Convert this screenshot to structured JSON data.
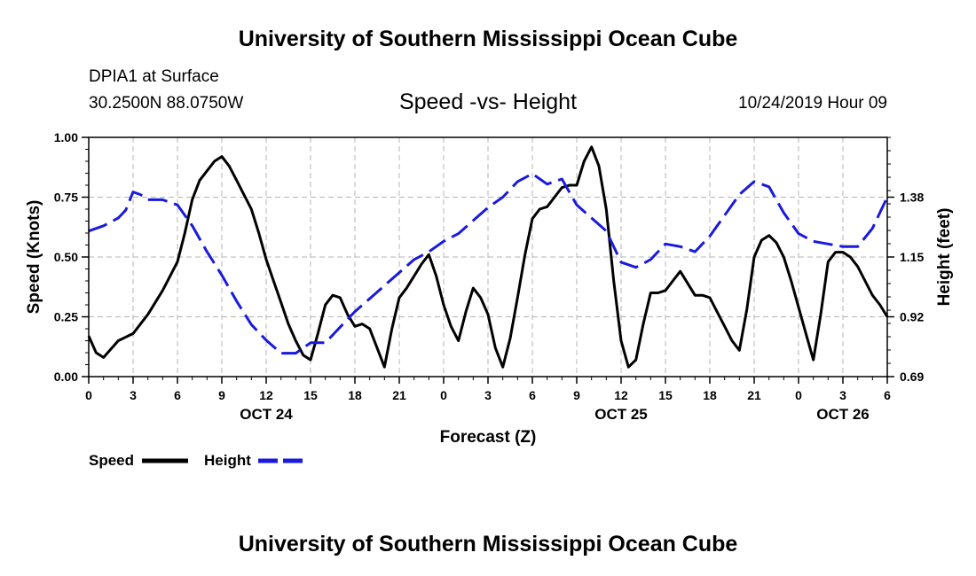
{
  "header": {
    "title": "University of Southern Mississippi Ocean Cube",
    "station": "DPIA1 at Surface",
    "location": "30.2500N 88.0750W",
    "chart_title": "Speed -vs- Height",
    "datetime": "10/24/2019 Hour 09"
  },
  "footer": {
    "title": "University of Southern Mississippi Ocean Cube"
  },
  "legend": {
    "speed_label": "Speed",
    "height_label": "Height"
  },
  "colors": {
    "speed": "#000000",
    "height": "#1a1adc",
    "grid": "#b4b4b4"
  },
  "chart_data": {
    "type": "line",
    "title": "Speed -vs- Height",
    "xlabel": "Forecast (Z)",
    "ylabel": "Speed (Knots)",
    "y2label": "Height (feet)",
    "xlim": [
      0,
      54
    ],
    "ylim": [
      0,
      1
    ],
    "y2lim": [
      0.69,
      1.61
    ],
    "x_ticks": [
      0,
      3,
      6,
      9,
      12,
      15,
      18,
      21,
      24,
      27,
      30,
      33,
      36,
      39,
      42,
      45,
      48,
      51,
      54
    ],
    "x_tick_labels": [
      "0",
      "3",
      "6",
      "9",
      "12",
      "15",
      "18",
      "21",
      "0",
      "3",
      "6",
      "9",
      "12",
      "15",
      "18",
      "21",
      "0",
      "3",
      "6"
    ],
    "y_ticks": [
      0,
      0.25,
      0.5,
      0.75,
      1.0
    ],
    "y_tick_labels": [
      "0.00",
      "0.25",
      "0.50",
      "0.75",
      "1.00"
    ],
    "y2_ticks": [
      0.69,
      0.92,
      1.15,
      1.38
    ],
    "y2_tick_labels": [
      "0.69",
      "0.92",
      "1.15",
      "1.38"
    ],
    "date_labels": [
      {
        "x": 12,
        "label": "OCT 24"
      },
      {
        "x": 36,
        "label": "OCT 25"
      },
      {
        "x": 51,
        "label": "OCT 26"
      }
    ],
    "grid": true,
    "legend_position": "bottom-left",
    "series": [
      {
        "name": "Speed",
        "axis": "left",
        "style": "solid",
        "x": [
          0,
          0.5,
          1,
          2,
          3,
          4,
          5,
          5.5,
          6,
          6.5,
          7,
          7.5,
          8,
          8.5,
          9,
          9.5,
          10,
          10.5,
          11,
          11.5,
          12,
          12.5,
          13,
          13.5,
          14,
          14.5,
          15,
          15.5,
          16,
          16.5,
          17,
          17.5,
          18,
          18.5,
          19,
          19.5,
          20,
          20.5,
          21,
          21.5,
          22,
          22.5,
          23,
          23.5,
          24,
          24.5,
          25,
          25.5,
          26,
          26.5,
          27,
          27.5,
          28,
          28.5,
          29,
          29.5,
          30,
          30.5,
          31,
          31.5,
          32,
          32.5,
          33,
          33.5,
          34,
          34.5,
          35,
          35.5,
          36,
          36.5,
          37,
          37.5,
          38,
          38.5,
          39,
          39.5,
          40,
          40.5,
          41,
          41.5,
          42,
          42.5,
          43,
          43.5,
          44,
          44.5,
          45,
          45.5,
          46,
          46.5,
          47,
          47.5,
          48,
          48.5,
          49,
          49.5,
          50,
          50.5,
          51,
          51.5,
          52,
          52.5,
          53,
          53.5,
          54
        ],
        "values": [
          0.17,
          0.1,
          0.08,
          0.15,
          0.18,
          0.26,
          0.36,
          0.42,
          0.48,
          0.6,
          0.74,
          0.82,
          0.86,
          0.9,
          0.92,
          0.88,
          0.82,
          0.76,
          0.7,
          0.6,
          0.49,
          0.4,
          0.31,
          0.22,
          0.15,
          0.09,
          0.07,
          0.18,
          0.3,
          0.34,
          0.33,
          0.26,
          0.21,
          0.22,
          0.2,
          0.12,
          0.04,
          0.2,
          0.33,
          0.37,
          0.42,
          0.47,
          0.51,
          0.42,
          0.3,
          0.21,
          0.15,
          0.27,
          0.37,
          0.33,
          0.26,
          0.12,
          0.04,
          0.16,
          0.33,
          0.51,
          0.66,
          0.7,
          0.71,
          0.75,
          0.79,
          0.8,
          0.8,
          0.9,
          0.96,
          0.88,
          0.7,
          0.4,
          0.15,
          0.04,
          0.07,
          0.22,
          0.35,
          0.35,
          0.36,
          0.4,
          0.44,
          0.39,
          0.34,
          0.34,
          0.33,
          0.27,
          0.21,
          0.15,
          0.11,
          0.28,
          0.5,
          0.57,
          0.59,
          0.56,
          0.5,
          0.4,
          0.29,
          0.18,
          0.07,
          0.26,
          0.48,
          0.52,
          0.52,
          0.5,
          0.46,
          0.4,
          0.34,
          0.3,
          0.25
        ]
      },
      {
        "name": "Height",
        "axis": "right",
        "style": "dashed",
        "x": [
          0,
          1,
          2,
          2.5,
          3,
          3.5,
          4,
          5,
          6,
          7,
          8,
          9,
          10,
          11,
          12,
          13,
          14,
          15,
          16,
          17,
          18,
          19,
          20,
          21,
          22,
          23,
          24,
          25,
          26,
          27,
          28,
          29,
          30,
          31,
          32,
          33,
          34,
          35,
          36,
          37,
          38,
          39,
          40,
          41,
          42,
          43,
          44,
          45,
          46,
          47,
          48,
          49,
          50,
          51,
          52,
          53,
          54
        ],
        "values": [
          1.25,
          1.27,
          1.3,
          1.33,
          1.4,
          1.39,
          1.37,
          1.37,
          1.35,
          1.27,
          1.17,
          1.08,
          0.98,
          0.89,
          0.83,
          0.78,
          0.78,
          0.82,
          0.82,
          0.88,
          0.94,
          0.99,
          1.04,
          1.09,
          1.14,
          1.17,
          1.21,
          1.24,
          1.29,
          1.34,
          1.38,
          1.44,
          1.47,
          1.43,
          1.45,
          1.35,
          1.3,
          1.25,
          1.13,
          1.11,
          1.14,
          1.2,
          1.19,
          1.17,
          1.23,
          1.31,
          1.39,
          1.44,
          1.42,
          1.32,
          1.24,
          1.21,
          1.2,
          1.19,
          1.19,
          1.26,
          1.38
        ]
      }
    ]
  }
}
